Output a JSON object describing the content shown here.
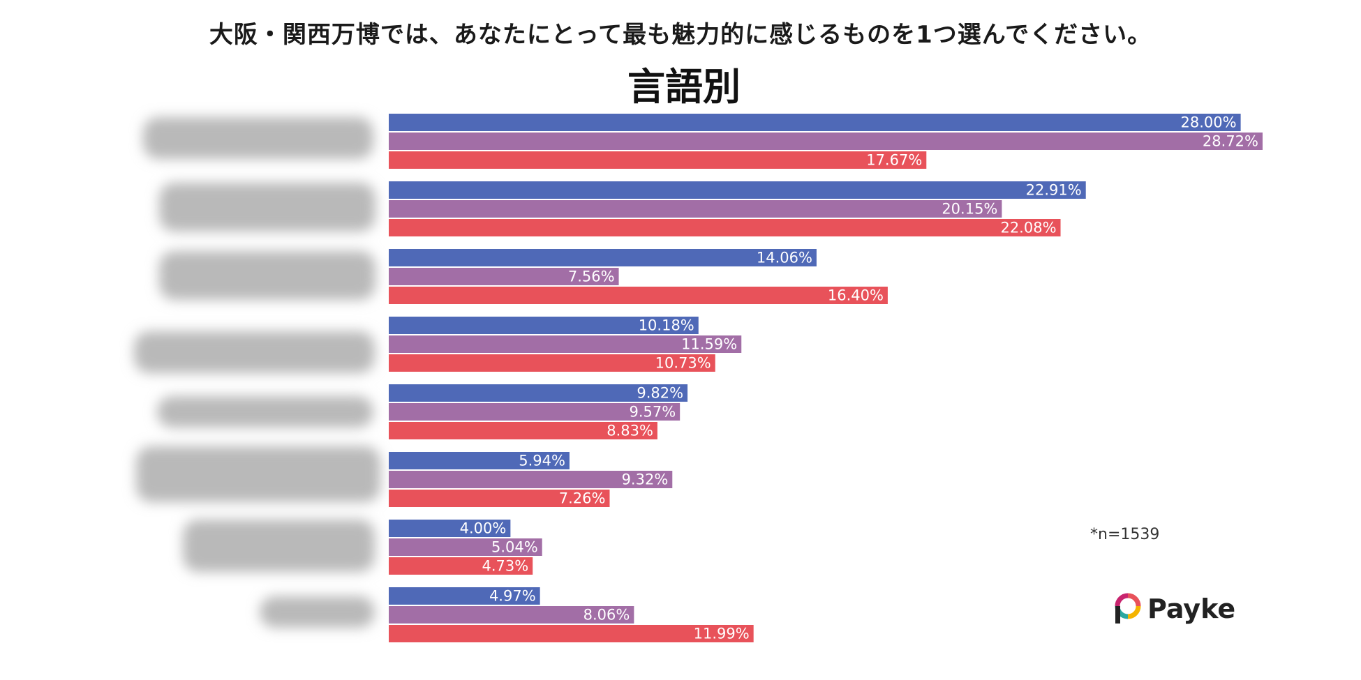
{
  "question": "大阪・関西万博では、あなたにとって最も魅力的に感じるものを1つ選んでください。",
  "subtitle": "言語別",
  "sample_note": "*n=1539",
  "brand": "Payke",
  "colors": {
    "series1": "#4f69b7",
    "series2": "#a26ea6",
    "series3": "#e8525a"
  },
  "chart_data": {
    "type": "bar",
    "orientation": "horizontal",
    "title": "言語別",
    "categories_visible": false,
    "categories": [
      "",
      "",
      "",
      "",
      "",
      "",
      "",
      ""
    ],
    "series": [
      {
        "name": "",
        "values": [
          28.0,
          22.91,
          14.06,
          10.18,
          9.82,
          5.94,
          4.0,
          4.97
        ]
      },
      {
        "name": "",
        "values": [
          28.72,
          20.15,
          7.56,
          11.59,
          9.57,
          9.32,
          5.04,
          8.06
        ]
      },
      {
        "name": "",
        "values": [
          17.67,
          22.08,
          16.4,
          10.73,
          8.83,
          7.26,
          4.73,
          11.99
        ]
      }
    ],
    "labels": [
      [
        "28.00%",
        "28.72%",
        "17.67%"
      ],
      [
        "22.91%",
        "20.15%",
        "22.08%"
      ],
      [
        "14.06%",
        "7.56%",
        "16.40%"
      ],
      [
        "10.18%",
        "11.59%",
        "10.73%"
      ],
      [
        "9.82%",
        "9.57%",
        "8.83%"
      ],
      [
        "5.94%",
        "9.32%",
        "7.26%"
      ],
      [
        "4.00%",
        "5.04%",
        "4.73%"
      ],
      [
        "4.97%",
        "8.06%",
        "11.99%"
      ]
    ],
    "unit": "%",
    "xlim": [
      0,
      28.72
    ]
  }
}
